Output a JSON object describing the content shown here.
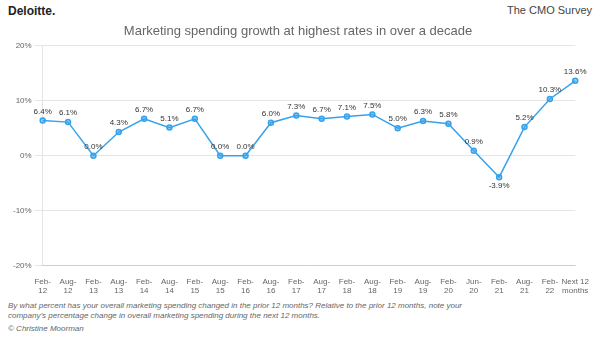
{
  "chart_data": {
    "type": "line",
    "title": "Marketing spending growth at highest rates in over a decade",
    "categories": [
      "Feb-\n12",
      "Aug-\n12",
      "Feb-\n13",
      "Aug-\n13",
      "Feb-\n14",
      "Aug-\n14",
      "Feb-\n15",
      "Aug-\n15",
      "Feb-\n16",
      "Aug-\n16",
      "Feb-\n17",
      "Aug-\n17",
      "Feb-\n18",
      "Aug-\n18",
      "Feb-\n19",
      "Aug-\n19",
      "Feb-\n20",
      "Jun-\n20",
      "Feb-\n21",
      "Aug-\n21",
      "Feb-\n22",
      "Next 12\nmonths"
    ],
    "values": [
      6.4,
      6.1,
      0.0,
      4.3,
      6.7,
      5.1,
      6.7,
      0.0,
      0.0,
      6.0,
      7.3,
      6.7,
      7.1,
      7.5,
      5.0,
      6.3,
      5.8,
      0.9,
      -3.9,
      5.2,
      10.3,
      13.6
    ],
    "value_labels": [
      "6.4%",
      "6.1%",
      "0.0%",
      "4.3%",
      "6.7%",
      "5.1%",
      "6.7%",
      "0.0%",
      "0.0%",
      "6.0%",
      "7.3%",
      "6.7%",
      "7.1%",
      "7.5%",
      "5.0%",
      "6.3%",
      "5.8%",
      "0.9%",
      "-3.9%",
      "5.2%",
      "10.3%",
      "13.6%"
    ],
    "data_labels": true,
    "marker": "circle",
    "ylim": [
      -20,
      20
    ],
    "yticks": [
      {
        "value": -20,
        "label": "-20%"
      },
      {
        "value": -10,
        "label": "-10%"
      },
      {
        "value": 0,
        "label": "0%"
      },
      {
        "value": 10,
        "label": "10%"
      },
      {
        "value": 20,
        "label": "20%"
      }
    ],
    "grid": true,
    "annotations": [
      "Deloitte.",
      "The CMO Survey",
      "By what percent has your overall marketing spending changed in the prior 12 months? Relative to the prior 12 months, note your\ncompany’s percentage change in overall marketing spending during the next 12 months.",
      "© Christine Moorman"
    ]
  }
}
